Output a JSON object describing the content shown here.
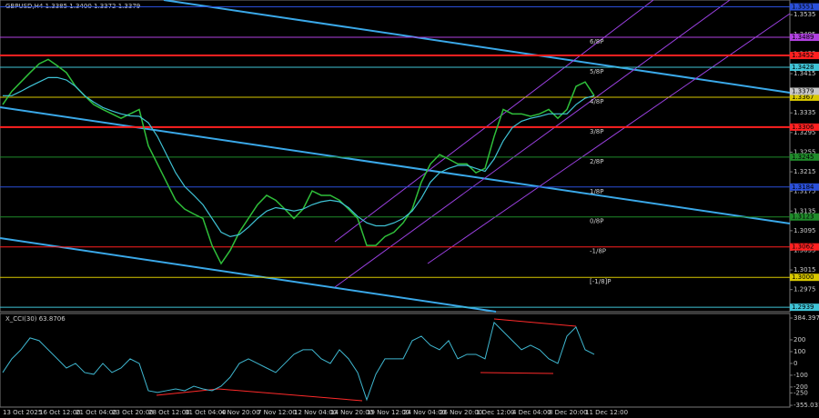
{
  "chart_data": {
    "type": "line",
    "title": "GBPUSD,H4  1.3385 1.3400 1.3372 1.3379",
    "categories": [
      "13 Oct 2025",
      null,
      null,
      null,
      "16 Oct 12:00",
      null,
      null,
      null,
      "21 Oct 04:00",
      null,
      null,
      null,
      "23 Oct 20:00",
      null,
      null,
      null,
      "28 Oct 12:00",
      null,
      null,
      null,
      "31 Oct 04:00",
      null,
      null,
      null,
      "4 Nov 20:00",
      null,
      null,
      null,
      "7 Nov 12:00",
      null,
      null,
      null,
      "12 Nov 04:00",
      null,
      null,
      null,
      "14 Nov 20:00",
      null,
      null,
      null,
      "19 Nov 12:00",
      null,
      null,
      null,
      "24 Nov 04:00",
      null,
      null,
      null,
      "26 Nov 20:00",
      null,
      null,
      null,
      "1 Dec 12:00",
      null,
      null,
      null,
      "4 Dec 04:00",
      null,
      null,
      null,
      "8 Dec 20:00",
      null,
      null,
      null,
      "11 Dec 12:00",
      null
    ],
    "series": [
      {
        "color": "#2fbf3a",
        "values": [
          1.3352,
          1.3379,
          1.3398,
          1.3417,
          1.3435,
          1.3444,
          1.3431,
          1.3417,
          1.3389,
          1.337,
          1.3352,
          1.3342,
          1.3333,
          1.3324,
          1.3333,
          1.3342,
          1.3268,
          1.3231,
          1.3194,
          1.3157,
          1.3139,
          1.3129,
          1.312,
          1.3065,
          1.3028,
          1.3055,
          1.3092,
          1.312,
          1.3148,
          1.3167,
          1.3157,
          1.3139,
          1.312,
          1.3139,
          1.3176,
          1.3167,
          1.3167,
          1.3157,
          1.3139,
          1.312,
          1.3065,
          1.3065,
          1.3083,
          1.3092,
          1.3111,
          1.3139,
          1.3194,
          1.3231,
          1.325,
          1.3241,
          1.3231,
          1.3231,
          1.3213,
          1.3222,
          1.3287,
          1.3342,
          1.3333,
          1.3333,
          1.3328,
          1.3333,
          1.3342,
          1.3324,
          1.3342,
          1.3389,
          1.3398,
          1.337
        ]
      },
      {
        "color": "#3fc3d6",
        "values": [
          1.337,
          1.337,
          1.3379,
          1.3389,
          1.3398,
          1.3407,
          1.3407,
          1.3402,
          1.3389,
          1.337,
          1.3357,
          1.3346,
          1.3339,
          1.3333,
          1.3329,
          1.3328,
          1.3315,
          1.3287,
          1.325,
          1.3213,
          1.3185,
          1.3167,
          1.3148,
          1.312,
          1.3092,
          1.3083,
          1.3087,
          1.3102,
          1.312,
          1.3135,
          1.3142,
          1.3139,
          1.3135,
          1.3139,
          1.3148,
          1.3154,
          1.3157,
          1.3154,
          1.3142,
          1.3124,
          1.3111,
          1.3105,
          1.3105,
          1.3111,
          1.312,
          1.3135,
          1.3161,
          1.3194,
          1.3213,
          1.3222,
          1.3228,
          1.3228,
          1.3222,
          1.3216,
          1.3241,
          1.3278,
          1.3305,
          1.3318,
          1.3324,
          1.3328,
          1.3333,
          1.3333,
          1.3333,
          1.3352,
          1.3365,
          1.337
        ]
      }
    ],
    "ylim": [
      1.293,
      1.3565
    ],
    "yticks": [
      1.3535,
      1.3495,
      1.3455,
      1.3415,
      1.3375,
      1.3335,
      1.3295,
      1.3255,
      1.3215,
      1.3175,
      1.3135,
      1.3095,
      1.3055,
      1.3015,
      1.2975
    ],
    "levels": [
      {
        "value": 1.3551,
        "color": "#2a4fd8"
      },
      {
        "value": 1.3489,
        "color": "#b040e0",
        "name": "6/8P"
      },
      {
        "value": 1.3452,
        "color": "#ff2020"
      },
      {
        "value": 1.3428,
        "color": "#3fc3d6",
        "name": "5/8P"
      },
      {
        "value": 1.3367,
        "color": "#d8c800",
        "name": "4/8P"
      },
      {
        "value": 1.3306,
        "color": "#ff2020",
        "name": "3/8P"
      },
      {
        "value": 1.3245,
        "color": "#1f8a2a",
        "name": "2/8P"
      },
      {
        "value": 1.3184,
        "color": "#2a4fd8",
        "name": "1/8P"
      },
      {
        "value": 1.3123,
        "color": "#1f8a2a",
        "name": "0/8P"
      },
      {
        "value": 1.3062,
        "color": "#ff2020",
        "name": "-1/8P"
      },
      {
        "value": 1.3,
        "label": "1.3000",
        "color": "#d8c800",
        "name": "[-1/8]P"
      },
      {
        "value": 1.2939,
        "color": "#3fc3d6"
      }
    ],
    "last": 1.3379,
    "indicator": {
      "title": "X_CCI(30) 63.8706",
      "color": "#3fb7d0",
      "values": [
        -77,
        39,
        116,
        216,
        193,
        116,
        39,
        -39,
        0,
        -77,
        -92,
        0,
        -77,
        -39,
        39,
        0,
        -231,
        -246,
        -231,
        -216,
        -231,
        -193,
        -216,
        -231,
        -193,
        -116,
        0,
        39,
        0,
        -39,
        -77,
        0,
        77,
        116,
        116,
        39,
        0,
        116,
        39,
        -77,
        -308,
        -92,
        39,
        39,
        39,
        193,
        231,
        154,
        116,
        193,
        39,
        77,
        77,
        39,
        347,
        270,
        193,
        116,
        154,
        116,
        39,
        0,
        231,
        308,
        116,
        77
      ],
      "ylim": [
        -370,
        423
      ],
      "yticks": [
        384.3972,
        200,
        100,
        0,
        -100,
        -200,
        -250,
        -355.031
      ]
    }
  }
}
